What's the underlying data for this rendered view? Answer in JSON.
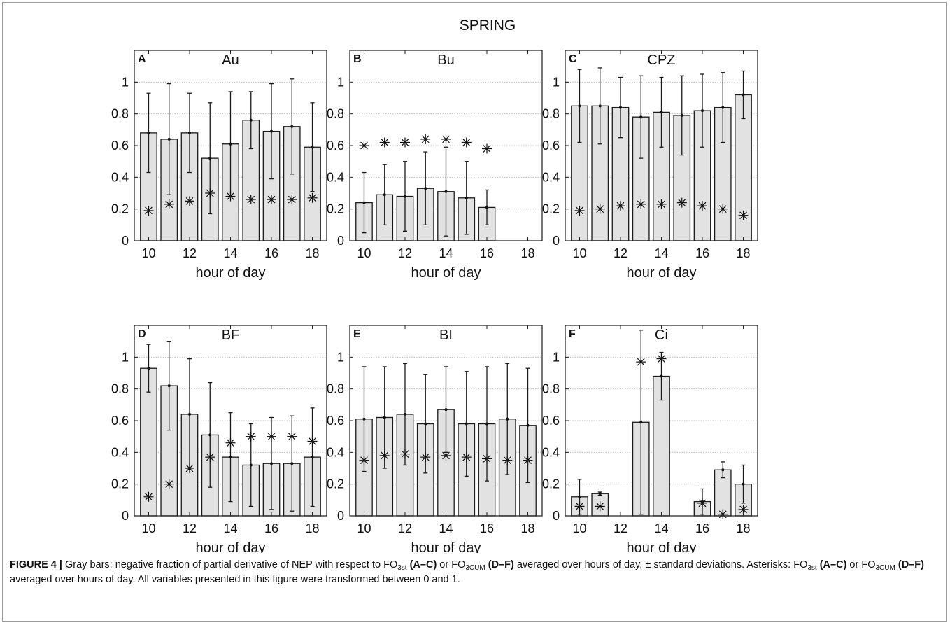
{
  "figure": {
    "season_title": "SPRING",
    "caption": {
      "label": "FIGURE 4 |",
      "t1": " Gray bars: negative fraction of partial derivative of NEP with respect to FO",
      "sub_st": "3st",
      "r_ac": " (A–C)",
      "t2": " or FO",
      "sub_cum": "3CUM",
      "r_df": " (D–F)",
      "t3": " averaged over hours of day, ± standard deviations. Asterisks: FO",
      "t4": " or FO",
      "t5": " averaged over hours of day. All variables presented in this figure were transformed between 0 and 1."
    }
  },
  "chart_data": [
    {
      "type": "bar",
      "panel": "A",
      "title": "Au",
      "xlabel": "hour of day",
      "ylabel": "",
      "x": [
        10,
        11,
        12,
        13,
        14,
        15,
        16,
        17,
        18
      ],
      "xticks": [
        10,
        12,
        14,
        16,
        18
      ],
      "xlim": [
        9.3,
        18.7
      ],
      "yticks": [
        "0",
        "0.2",
        "0.4",
        "0.6",
        "0.8",
        "1"
      ],
      "ylim": [
        0,
        1.2
      ],
      "grid": true,
      "bars": [
        0.68,
        0.64,
        0.68,
        0.52,
        0.61,
        0.76,
        0.69,
        0.72,
        0.59
      ],
      "std": [
        0.25,
        0.35,
        0.25,
        0.35,
        0.33,
        0.18,
        0.3,
        0.3,
        0.28
      ],
      "asterisks": [
        0.19,
        0.23,
        0.25,
        0.3,
        0.28,
        0.26,
        0.26,
        0.26,
        0.27
      ]
    },
    {
      "type": "bar",
      "panel": "B",
      "title": "Bu",
      "xlabel": "hour of day",
      "ylabel": "",
      "x": [
        10,
        11,
        12,
        13,
        14,
        15,
        16,
        17,
        18
      ],
      "xticks": [
        10,
        12,
        14,
        16,
        18
      ],
      "xlim": [
        9.3,
        18.7
      ],
      "yticks": [
        "0",
        "0.2",
        "0.4",
        "0.6",
        "0.8",
        "1"
      ],
      "ylim": [
        0,
        1.2
      ],
      "grid": true,
      "bars": [
        0.24,
        0.29,
        0.28,
        0.33,
        0.31,
        0.27,
        0.21,
        null,
        null
      ],
      "std": [
        0.19,
        0.19,
        0.22,
        0.23,
        0.28,
        0.23,
        0.11,
        null,
        null
      ],
      "asterisks": [
        0.6,
        0.62,
        0.62,
        0.64,
        0.64,
        0.62,
        0.58,
        null,
        null
      ]
    },
    {
      "type": "bar",
      "panel": "C",
      "title": "CPZ",
      "xlabel": "hour of day",
      "ylabel": "",
      "x": [
        10,
        11,
        12,
        13,
        14,
        15,
        16,
        17,
        18
      ],
      "xticks": [
        10,
        12,
        14,
        16,
        18
      ],
      "xlim": [
        9.3,
        18.7
      ],
      "yticks": [
        "0",
        "0.2",
        "0.4",
        "0.6",
        "0.8",
        "1"
      ],
      "ylim": [
        0,
        1.2
      ],
      "grid": true,
      "bars": [
        0.85,
        0.85,
        0.84,
        0.78,
        0.81,
        0.79,
        0.82,
        0.84,
        0.92
      ],
      "std": [
        0.23,
        0.24,
        0.19,
        0.26,
        0.22,
        0.25,
        0.23,
        0.22,
        0.15
      ],
      "asterisks": [
        0.19,
        0.2,
        0.22,
        0.23,
        0.23,
        0.24,
        0.22,
        0.2,
        0.16
      ]
    },
    {
      "type": "bar",
      "panel": "D",
      "title": "BF",
      "xlabel": "hour of day",
      "ylabel": "",
      "x": [
        10,
        11,
        12,
        13,
        14,
        15,
        16,
        17,
        18
      ],
      "xticks": [
        10,
        12,
        14,
        16,
        18
      ],
      "xlim": [
        9.3,
        18.7
      ],
      "yticks": [
        "0",
        "0.2",
        "0.4",
        "0.6",
        "0.8",
        "1"
      ],
      "ylim": [
        0,
        1.2
      ],
      "grid": true,
      "bars": [
        0.93,
        0.82,
        0.64,
        0.51,
        0.37,
        0.32,
        0.33,
        0.33,
        0.37
      ],
      "std": [
        0.15,
        0.28,
        0.35,
        0.33,
        0.28,
        0.26,
        0.29,
        0.3,
        0.31
      ],
      "asterisks": [
        0.12,
        0.2,
        0.3,
        0.37,
        0.46,
        0.5,
        0.5,
        0.5,
        0.47
      ]
    },
    {
      "type": "bar",
      "panel": "E",
      "title": "BI",
      "xlabel": "hour of day",
      "ylabel": "",
      "x": [
        10,
        11,
        12,
        13,
        14,
        15,
        16,
        17,
        18
      ],
      "xticks": [
        10,
        12,
        14,
        16,
        18
      ],
      "xlim": [
        9.3,
        18.7
      ],
      "yticks": [
        "0",
        "0.2",
        "0.4",
        "0.6",
        "0.8",
        "1"
      ],
      "ylim": [
        0,
        1.2
      ],
      "grid": true,
      "bars": [
        0.61,
        0.62,
        0.64,
        0.58,
        0.67,
        0.58,
        0.58,
        0.61,
        0.57
      ],
      "std": [
        0.33,
        0.32,
        0.32,
        0.31,
        0.27,
        0.33,
        0.36,
        0.35,
        0.36
      ],
      "asterisks": [
        0.35,
        0.38,
        0.39,
        0.37,
        0.38,
        0.37,
        0.36,
        0.35,
        0.35
      ]
    },
    {
      "type": "bar",
      "panel": "F",
      "title": "Ci",
      "xlabel": "hour of day",
      "ylabel": "",
      "x": [
        10,
        11,
        12,
        13,
        14,
        15,
        16,
        17,
        18
      ],
      "xticks": [
        10,
        12,
        14,
        16,
        18
      ],
      "xlim": [
        9.3,
        18.7
      ],
      "yticks": [
        "0",
        "0.2",
        "0.4",
        "0.6",
        "0.8",
        "1"
      ],
      "ylim": [
        0,
        1.2
      ],
      "grid": true,
      "bars": [
        0.12,
        0.14,
        null,
        0.59,
        0.88,
        null,
        0.09,
        0.29,
        0.2
      ],
      "std": [
        0.11,
        0.01,
        null,
        0.58,
        0.15,
        null,
        0.08,
        0.05,
        0.12
      ],
      "asterisks": [
        0.06,
        0.06,
        null,
        0.97,
        0.99,
        null,
        0.08,
        0.01,
        0.04
      ]
    }
  ]
}
